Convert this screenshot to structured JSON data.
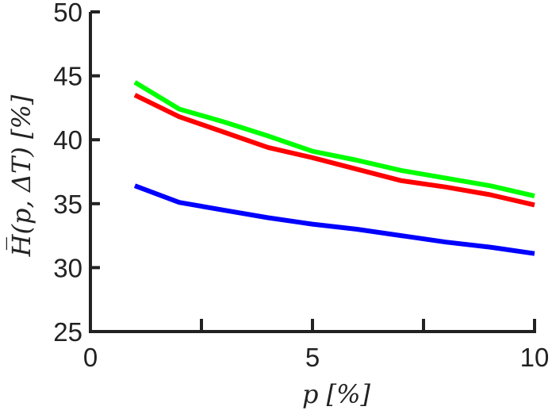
{
  "chart_data": {
    "type": "line",
    "title": "",
    "xlabel": "p [%]",
    "ylabel": "H̅(p, ΔT) [%]",
    "xlim": [
      0,
      10
    ],
    "ylim": [
      25,
      50
    ],
    "xticks": [
      0,
      5,
      10
    ],
    "xticks_minor": [
      2.5,
      7.5
    ],
    "yticks": [
      25,
      30,
      35,
      40,
      45,
      50
    ],
    "grid": false,
    "series": [
      {
        "color": "#00ff00",
        "x": [
          1,
          2,
          3,
          4,
          5,
          6,
          7,
          8,
          9,
          10
        ],
        "values": [
          44.5,
          42.4,
          41.4,
          40.3,
          39.1,
          38.4,
          37.6,
          37.0,
          36.4,
          35.6
        ]
      },
      {
        "color": "#ff0000",
        "x": [
          1,
          2,
          3,
          4,
          5,
          6,
          7,
          8,
          9,
          10
        ],
        "values": [
          43.5,
          41.8,
          40.6,
          39.4,
          38.6,
          37.7,
          36.8,
          36.3,
          35.7,
          34.9
        ]
      },
      {
        "color": "#0000ff",
        "x": [
          1,
          2,
          3,
          4,
          5,
          6,
          7,
          8,
          9,
          10
        ],
        "values": [
          36.4,
          35.1,
          34.5,
          33.9,
          33.4,
          33.0,
          32.5,
          32.0,
          31.6,
          31.1
        ]
      }
    ]
  }
}
